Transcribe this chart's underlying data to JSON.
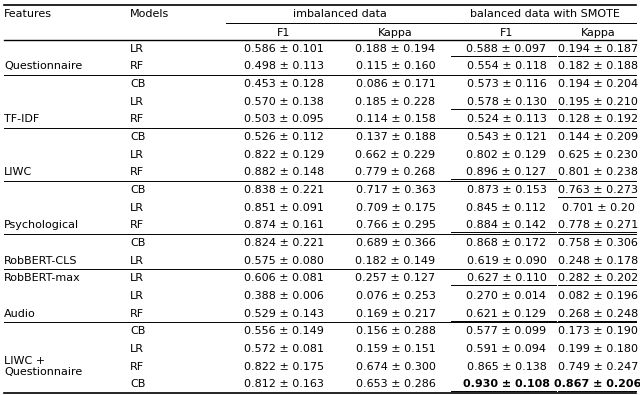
{
  "rows": [
    {
      "feature": "Questionnaire",
      "model": "LR",
      "imb_f1": "0.586 ± 0.101",
      "imb_kappa": "0.188 ± 0.194",
      "bal_f1": "0.588 ± 0.097",
      "bal_kappa": "0.194 ± 0.187",
      "ul_bal_f1": true,
      "ul_bal_kappa": true,
      "bold_bal_f1": false,
      "bold_bal_kappa": false,
      "span_start": true,
      "span_rows": 3
    },
    {
      "feature": "",
      "model": "RF",
      "imb_f1": "0.498 ± 0.113",
      "imb_kappa": "0.115 ± 0.160",
      "bal_f1": "0.554 ± 0.118",
      "bal_kappa": "0.182 ± 0.188",
      "ul_bal_f1": false,
      "ul_bal_kappa": false,
      "bold_bal_f1": false,
      "bold_bal_kappa": false,
      "span_start": false,
      "span_rows": 0
    },
    {
      "feature": "",
      "model": "CB",
      "imb_f1": "0.453 ± 0.128",
      "imb_kappa": "0.086 ± 0.171",
      "bal_f1": "0.573 ± 0.116",
      "bal_kappa": "0.194 ± 0.204",
      "ul_bal_f1": false,
      "ul_bal_kappa": false,
      "bold_bal_f1": false,
      "bold_bal_kappa": false,
      "span_start": false,
      "span_rows": 0
    },
    {
      "feature": "TF-IDF",
      "model": "LR",
      "imb_f1": "0.570 ± 0.138",
      "imb_kappa": "0.185 ± 0.228",
      "bal_f1": "0.578 ± 0.130",
      "bal_kappa": "0.195 ± 0.210",
      "ul_bal_f1": true,
      "ul_bal_kappa": true,
      "bold_bal_f1": false,
      "bold_bal_kappa": false,
      "span_start": true,
      "span_rows": 3
    },
    {
      "feature": "",
      "model": "RF",
      "imb_f1": "0.503 ± 0.095",
      "imb_kappa": "0.114 ± 0.158",
      "bal_f1": "0.524 ± 0.113",
      "bal_kappa": "0.128 ± 0.192",
      "ul_bal_f1": false,
      "ul_bal_kappa": false,
      "bold_bal_f1": false,
      "bold_bal_kappa": false,
      "span_start": false,
      "span_rows": 0
    },
    {
      "feature": "",
      "model": "CB",
      "imb_f1": "0.526 ± 0.112",
      "imb_kappa": "0.137 ± 0.188",
      "bal_f1": "0.543 ± 0.121",
      "bal_kappa": "0.144 ± 0.209",
      "ul_bal_f1": false,
      "ul_bal_kappa": false,
      "bold_bal_f1": false,
      "bold_bal_kappa": false,
      "span_start": false,
      "span_rows": 0
    },
    {
      "feature": "LIWC",
      "model": "LR",
      "imb_f1": "0.822 ± 0.129",
      "imb_kappa": "0.662 ± 0.229",
      "bal_f1": "0.802 ± 0.129",
      "bal_kappa": "0.625 ± 0.230",
      "ul_bal_f1": false,
      "ul_bal_kappa": false,
      "bold_bal_f1": false,
      "bold_bal_kappa": false,
      "span_start": true,
      "span_rows": 3
    },
    {
      "feature": "",
      "model": "RF",
      "imb_f1": "0.882 ± 0.148",
      "imb_kappa": "0.779 ± 0.268",
      "bal_f1": "0.896 ± 0.127",
      "bal_kappa": "0.801 ± 0.238",
      "ul_bal_f1": true,
      "ul_bal_kappa": false,
      "bold_bal_f1": false,
      "bold_bal_kappa": false,
      "span_start": false,
      "span_rows": 0
    },
    {
      "feature": "",
      "model": "CB",
      "imb_f1": "0.838 ± 0.221",
      "imb_kappa": "0.717 ± 0.363",
      "bal_f1": "0.873 ± 0.153",
      "bal_kappa": "0.763 ± 0.273",
      "ul_bal_f1": false,
      "ul_bal_kappa": true,
      "bold_bal_f1": false,
      "bold_bal_kappa": false,
      "span_start": false,
      "span_rows": 0
    },
    {
      "feature": "Psychological",
      "model": "LR",
      "imb_f1": "0.851 ± 0.091",
      "imb_kappa": "0.709 ± 0.175",
      "bal_f1": "0.845 ± 0.112",
      "bal_kappa": "0.701 ± 0.20",
      "ul_bal_f1": false,
      "ul_bal_kappa": false,
      "bold_bal_f1": false,
      "bold_bal_kappa": false,
      "span_start": true,
      "span_rows": 3
    },
    {
      "feature": "",
      "model": "RF",
      "imb_f1": "0.874 ± 0.161",
      "imb_kappa": "0.766 ± 0.295",
      "bal_f1": "0.884 ± 0.142",
      "bal_kappa": "0.778 ± 0.271",
      "ul_bal_f1": true,
      "ul_bal_kappa": true,
      "bold_bal_f1": false,
      "bold_bal_kappa": false,
      "span_start": false,
      "span_rows": 0
    },
    {
      "feature": "",
      "model": "CB",
      "imb_f1": "0.824 ± 0.221",
      "imb_kappa": "0.689 ± 0.366",
      "bal_f1": "0.868 ± 0.172",
      "bal_kappa": "0.758 ± 0.306",
      "ul_bal_f1": false,
      "ul_bal_kappa": false,
      "bold_bal_f1": false,
      "bold_bal_kappa": false,
      "span_start": false,
      "span_rows": 0
    },
    {
      "feature": "RobBERT-CLS",
      "model": "LR",
      "imb_f1": "0.575 ± 0.080",
      "imb_kappa": "0.182 ± 0.149",
      "bal_f1": "0.619 ± 0.090",
      "bal_kappa": "0.248 ± 0.178",
      "ul_bal_f1": false,
      "ul_bal_kappa": false,
      "bold_bal_f1": false,
      "bold_bal_kappa": false,
      "span_start": true,
      "span_rows": 1
    },
    {
      "feature": "RobBERT-max",
      "model": "LR",
      "imb_f1": "0.606 ± 0.081",
      "imb_kappa": "0.257 ± 0.127",
      "bal_f1": "0.627 ± 0.110",
      "bal_kappa": "0.282 ± 0.202",
      "ul_bal_f1": true,
      "ul_bal_kappa": true,
      "bold_bal_f1": false,
      "bold_bal_kappa": false,
      "span_start": true,
      "span_rows": 1
    },
    {
      "feature": "Audio",
      "model": "LR",
      "imb_f1": "0.388 ± 0.006",
      "imb_kappa": "0.076 ± 0.253",
      "bal_f1": "0.270 ± 0.014",
      "bal_kappa": "0.082 ± 0.196",
      "ul_bal_f1": false,
      "ul_bal_kappa": false,
      "bold_bal_f1": false,
      "bold_bal_kappa": false,
      "span_start": true,
      "span_rows": 3
    },
    {
      "feature": "",
      "model": "RF",
      "imb_f1": "0.529 ± 0.143",
      "imb_kappa": "0.169 ± 0.217",
      "bal_f1": "0.621 ± 0.129",
      "bal_kappa": "0.268 ± 0.248",
      "ul_bal_f1": true,
      "ul_bal_kappa": true,
      "bold_bal_f1": false,
      "bold_bal_kappa": false,
      "span_start": false,
      "span_rows": 0
    },
    {
      "feature": "",
      "model": "CB",
      "imb_f1": "0.556 ± 0.149",
      "imb_kappa": "0.156 ± 0.288",
      "bal_f1": "0.577 ± 0.099",
      "bal_kappa": "0.173 ± 0.190",
      "ul_bal_f1": false,
      "ul_bal_kappa": false,
      "bold_bal_f1": false,
      "bold_bal_kappa": false,
      "span_start": false,
      "span_rows": 0
    },
    {
      "feature": "LIWC +\nQuestionnaire",
      "model": "LR",
      "imb_f1": "0.572 ± 0.081",
      "imb_kappa": "0.159 ± 0.151",
      "bal_f1": "0.591 ± 0.094",
      "bal_kappa": "0.199 ± 0.180",
      "ul_bal_f1": false,
      "ul_bal_kappa": false,
      "bold_bal_f1": false,
      "bold_bal_kappa": false,
      "span_start": true,
      "span_rows": 3
    },
    {
      "feature": "",
      "model": "RF",
      "imb_f1": "0.822 ± 0.175",
      "imb_kappa": "0.674 ± 0.300",
      "bal_f1": "0.865 ± 0.138",
      "bal_kappa": "0.749 ± 0.247",
      "ul_bal_f1": false,
      "ul_bal_kappa": false,
      "bold_bal_f1": false,
      "bold_bal_kappa": false,
      "span_start": false,
      "span_rows": 0
    },
    {
      "feature": "",
      "model": "CB",
      "imb_f1": "0.812 ± 0.163",
      "imb_kappa": "0.653 ± 0.286",
      "bal_f1": "0.930 ± 0.108",
      "bal_kappa": "0.867 ± 0.206",
      "ul_bal_f1": true,
      "ul_bal_kappa": true,
      "bold_bal_f1": true,
      "bold_bal_kappa": true,
      "span_start": false,
      "span_rows": 0
    }
  ],
  "section_separators_after": [
    2,
    5,
    8,
    11,
    13,
    16
  ],
  "font_size": 8.0,
  "bg_color": "white"
}
